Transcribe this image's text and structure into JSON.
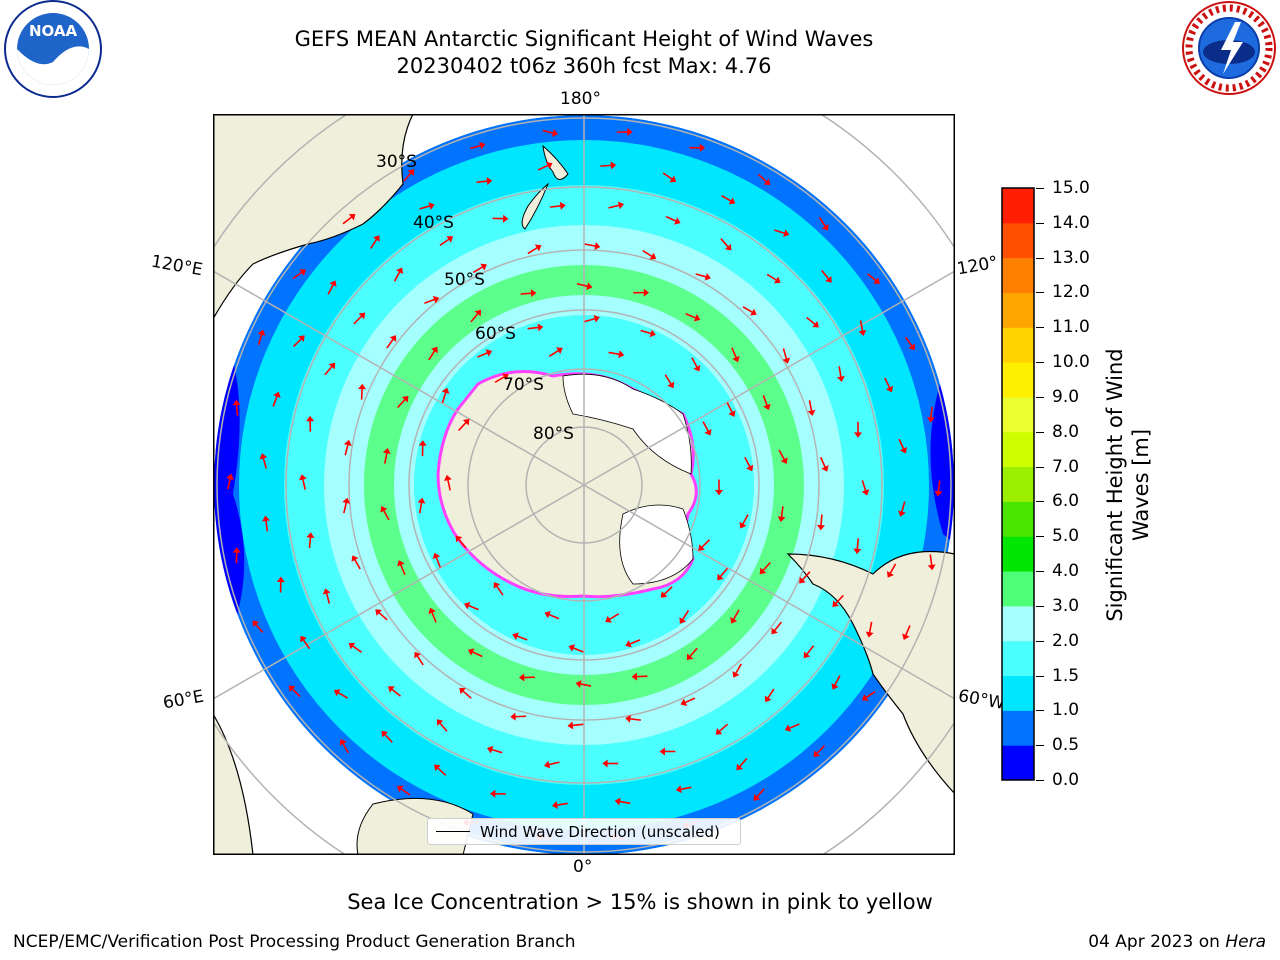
{
  "header": {
    "title_line1": "GEFS MEAN Antarctic Significant Height of Wind Waves",
    "title_line2": "20230402 t06z 360h fcst   Max: 4.76"
  },
  "logos": {
    "noaa": "NOAA",
    "nws": "NATIONAL WEATHER SERVICE"
  },
  "map": {
    "longitude_labels": {
      "top": "180°",
      "bottom": "0°",
      "left_upper": "120°E",
      "left_lower": "60°E",
      "right_upper": "120°",
      "right_lower": "60°W"
    },
    "latitude_labels": [
      "30°S",
      "40°S",
      "50°S",
      "60°S",
      "70°S",
      "80°S"
    ],
    "legend_label": "Wind Wave Direction (unscaled)",
    "arrow_color": "#ff0000",
    "land_color": "#efefdb",
    "ice_mask_color": "#ffffff"
  },
  "colorbar": {
    "title_line1": "Significant Height of Wind",
    "title_line2": "Waves [m]",
    "ticks": [
      "0.0",
      "0.5",
      "1.0",
      "1.5",
      "2.0",
      "3.0",
      "4.0",
      "5.0",
      "6.0",
      "7.0",
      "8.0",
      "9.0",
      "10.0",
      "11.0",
      "12.0",
      "13.0",
      "14.0",
      "15.0"
    ],
    "colors": [
      "#0000ff",
      "#0073ff",
      "#00e6ff",
      "#4cffff",
      "#a6ffff",
      "#50ff78",
      "#00e600",
      "#4be600",
      "#9bee00",
      "#cdff00",
      "#ebff30",
      "#fff000",
      "#ffd200",
      "#ffa500",
      "#ff7f00",
      "#ff5000",
      "#ff1e00"
    ]
  },
  "footer": {
    "note": "Sea Ice Concentration > 15% is shown in pink to yellow",
    "org": "NCEP/EMC/Verification Post Processing Product Generation Branch",
    "date": "04 Apr 2023 on ",
    "host": "Hera"
  }
}
